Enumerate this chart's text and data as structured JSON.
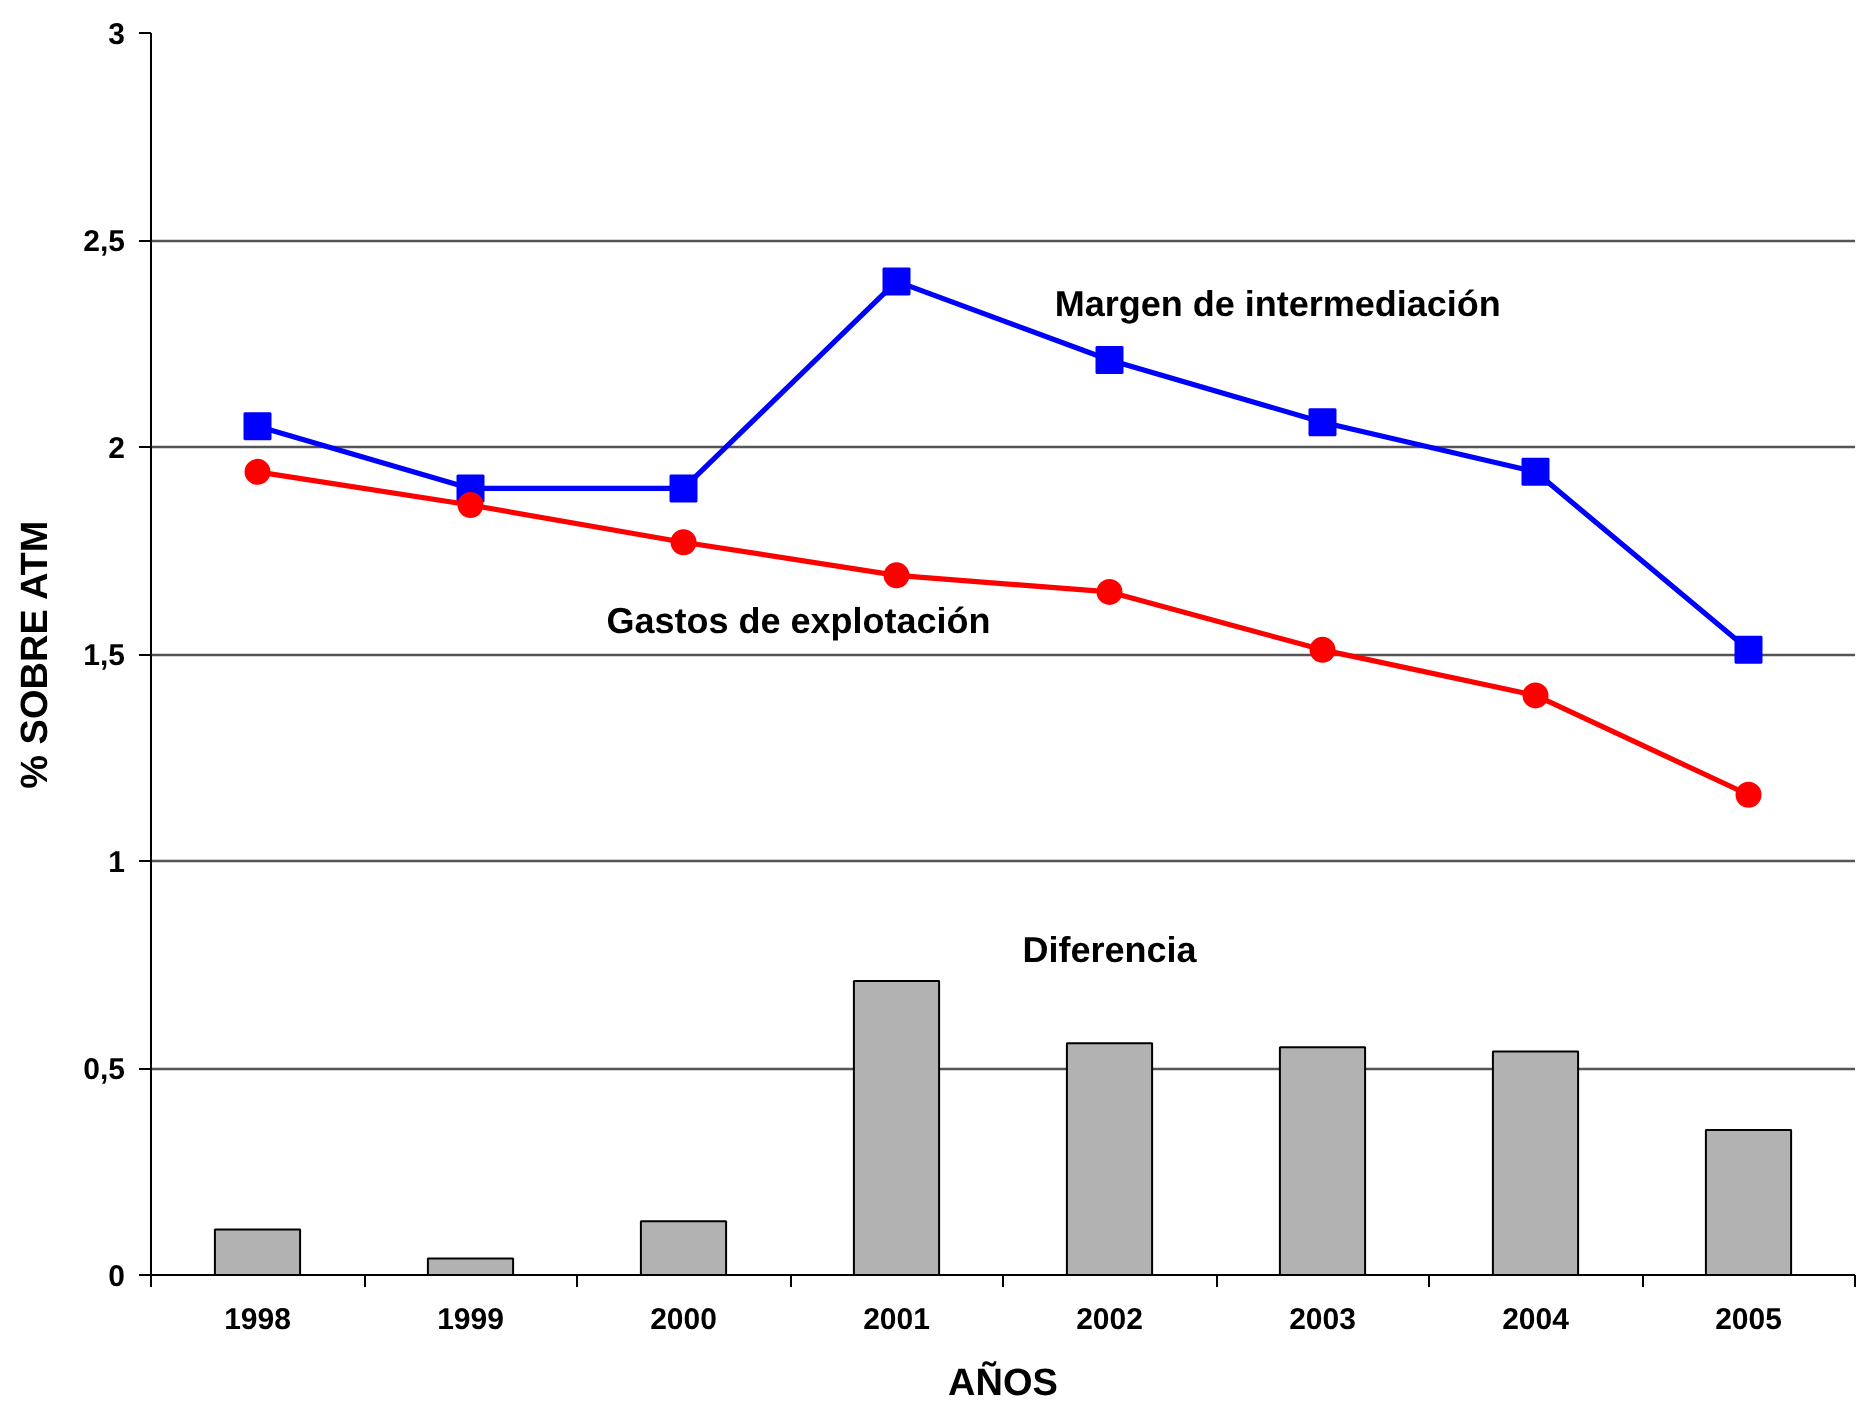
{
  "chart_data": {
    "type": "line",
    "xlabel": "AÑOS",
    "ylabel": "% SOBRE ATM",
    "categories": [
      "1998",
      "1999",
      "2000",
      "2001",
      "2002",
      "2003",
      "2004",
      "2005"
    ],
    "ylim": [
      0,
      3
    ],
    "yticks": [
      0,
      {
        "value": 0.5,
        "label": "0,5"
      },
      1,
      {
        "value": 1.5,
        "label": "1,5"
      },
      2,
      {
        "value": 2.5,
        "label": "2,5"
      },
      3
    ],
    "grid": "y",
    "series": [
      {
        "name": "Diferencia",
        "type": "bar",
        "color": "#b2b2b2",
        "values": [
          0.11,
          0.04,
          0.13,
          0.71,
          0.56,
          0.55,
          0.54,
          0.35
        ]
      },
      {
        "name": "Margen de intermediación",
        "color": "#0000ff",
        "marker": "square",
        "values": [
          2.05,
          1.9,
          1.9,
          2.4,
          2.21,
          2.06,
          1.94,
          1.51
        ]
      },
      {
        "name": "Gastos de explotación",
        "color": "#ff0000",
        "marker": "circle",
        "values": [
          1.94,
          1.86,
          1.77,
          1.69,
          1.65,
          1.51,
          1.4,
          1.16
        ]
      }
    ]
  }
}
